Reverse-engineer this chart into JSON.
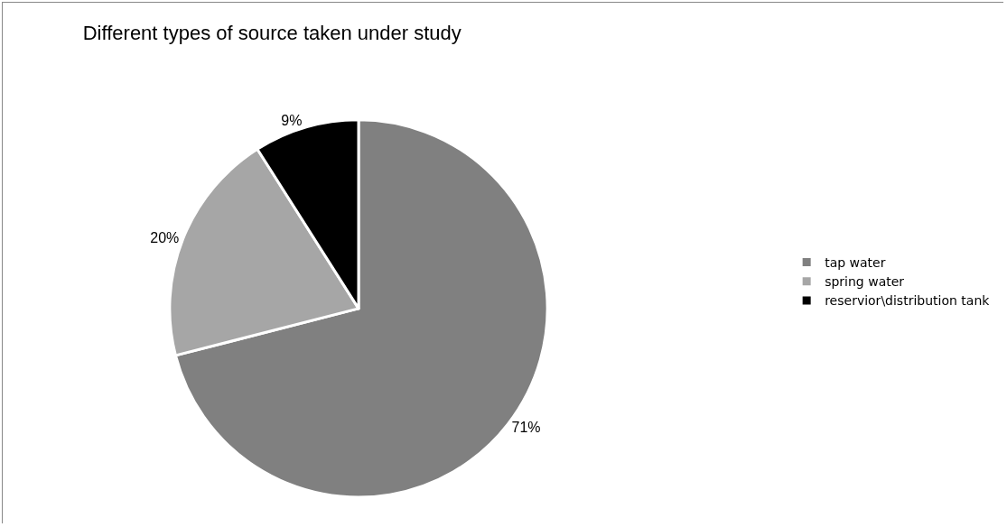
{
  "chart_data": {
    "type": "pie",
    "title": "Different types of source taken under study",
    "categories": [
      "tap water",
      "spring water",
      "reservior\\distribution tank"
    ],
    "values": [
      71,
      20,
      9
    ],
    "colors": [
      "#808080",
      "#a6a6a6",
      "#000000"
    ],
    "value_labels": [
      "71%",
      "20%",
      "9%"
    ],
    "legend": "right"
  }
}
